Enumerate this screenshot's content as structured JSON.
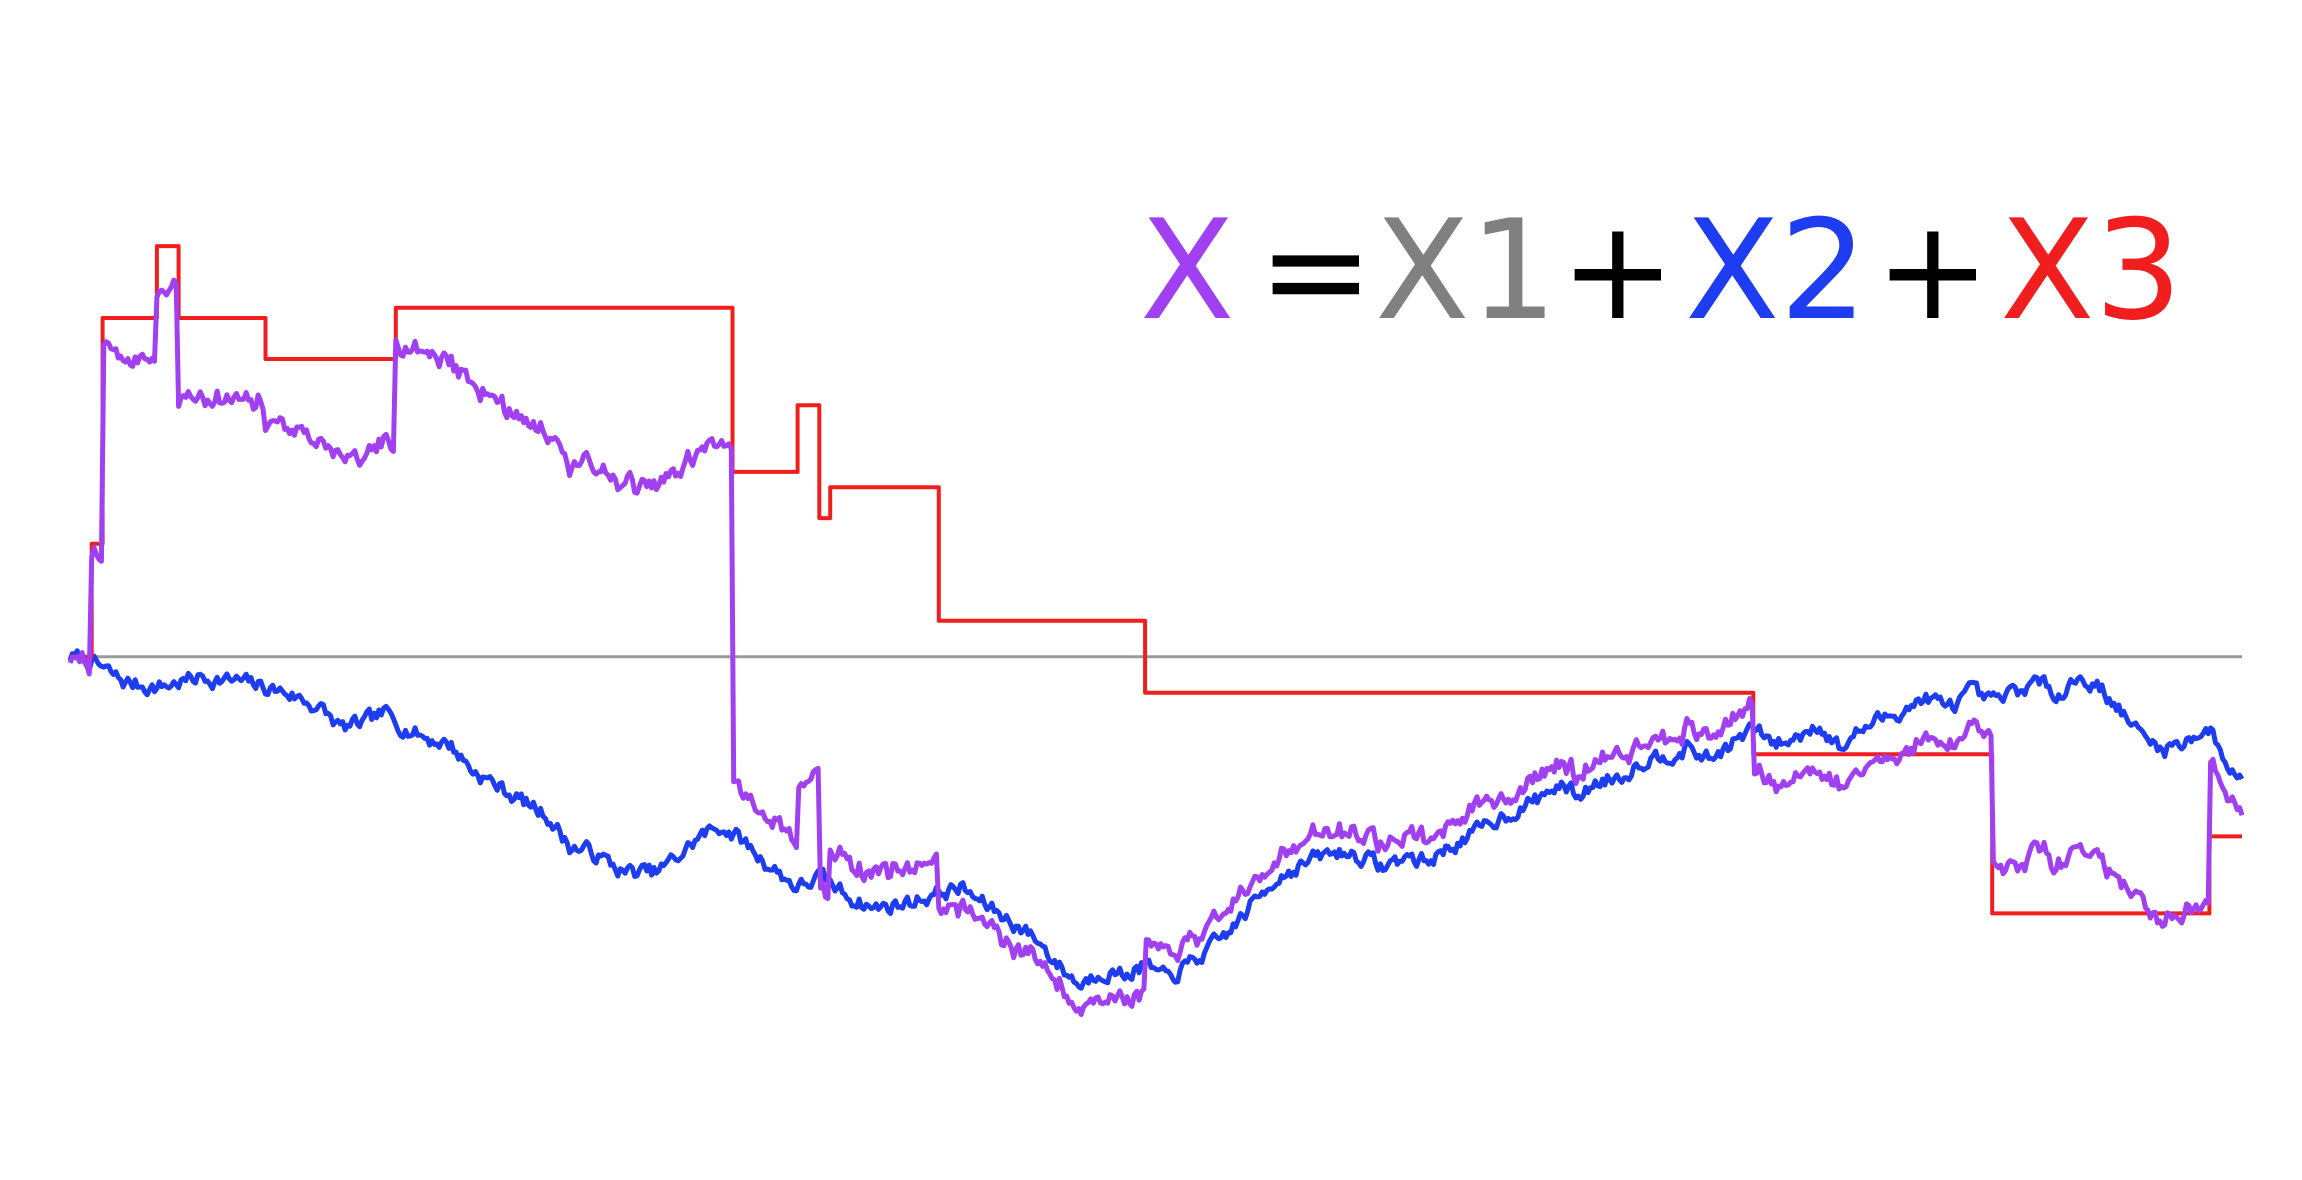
{
  "chart_data": {
    "type": "line",
    "title": "",
    "xlabel": "",
    "ylabel": "",
    "xlim": [
      0,
      1
    ],
    "ylim": [
      -1.0,
      1.26
    ],
    "grid": false,
    "axes_visible": false,
    "zero_line": {
      "y": 0,
      "color": "#999999"
    },
    "formula": [
      {
        "text": "X",
        "color": "#A040F0"
      },
      {
        "text": "=",
        "color": "#000000"
      },
      {
        "text": "X1",
        "color": "#808080"
      },
      {
        "text": "+",
        "color": "#000000"
      },
      {
        "text": "X2",
        "color": "#1E3CF0"
      },
      {
        "text": "+",
        "color": "#000000"
      },
      {
        "text": "X3",
        "color": "#F01E1E"
      }
    ],
    "series": [
      {
        "name": "X2",
        "color": "#1E3CF0",
        "kind": "noisy",
        "seed": 7,
        "noise": 0.012,
        "points": [
          [
            0,
            0
          ],
          [
            0.01,
            -0.01
          ],
          [
            0.025,
            -0.05
          ],
          [
            0.04,
            -0.06
          ],
          [
            0.06,
            -0.04
          ],
          [
            0.08,
            -0.05
          ],
          [
            0.09,
            -0.06
          ],
          [
            0.1,
            -0.07
          ],
          [
            0.115,
            -0.1
          ],
          [
            0.125,
            -0.14
          ],
          [
            0.135,
            -0.13
          ],
          [
            0.145,
            -0.11
          ],
          [
            0.155,
            -0.14
          ],
          [
            0.165,
            -0.16
          ],
          [
            0.175,
            -0.17
          ],
          [
            0.185,
            -0.22
          ],
          [
            0.2,
            -0.26
          ],
          [
            0.22,
            -0.31
          ],
          [
            0.23,
            -0.37
          ],
          [
            0.24,
            -0.38
          ],
          [
            0.255,
            -0.42
          ],
          [
            0.27,
            -0.42
          ],
          [
            0.28,
            -0.39
          ],
          [
            0.29,
            -0.35
          ],
          [
            0.3,
            -0.33
          ],
          [
            0.31,
            -0.36
          ],
          [
            0.32,
            -0.4
          ],
          [
            0.335,
            -0.45
          ],
          [
            0.345,
            -0.43
          ],
          [
            0.36,
            -0.47
          ],
          [
            0.37,
            -0.49
          ],
          [
            0.385,
            -0.48
          ],
          [
            0.4,
            -0.46
          ],
          [
            0.41,
            -0.45
          ],
          [
            0.42,
            -0.48
          ],
          [
            0.435,
            -0.52
          ],
          [
            0.445,
            -0.55
          ],
          [
            0.455,
            -0.6
          ],
          [
            0.465,
            -0.64
          ],
          [
            0.475,
            -0.61
          ],
          [
            0.485,
            -0.62
          ],
          [
            0.495,
            -0.6
          ],
          [
            0.505,
            -0.63
          ],
          [
            0.515,
            -0.6
          ],
          [
            0.525,
            -0.57
          ],
          [
            0.535,
            -0.53
          ],
          [
            0.545,
            -0.48
          ],
          [
            0.555,
            -0.43
          ],
          [
            0.565,
            -0.41
          ],
          [
            0.575,
            -0.39
          ],
          [
            0.585,
            -0.38
          ],
          [
            0.595,
            -0.39
          ],
          [
            0.605,
            -0.41
          ],
          [
            0.615,
            -0.39
          ],
          [
            0.625,
            -0.4
          ],
          [
            0.635,
            -0.37
          ],
          [
            0.645,
            -0.35
          ],
          [
            0.655,
            -0.32
          ],
          [
            0.665,
            -0.3
          ],
          [
            0.675,
            -0.28
          ],
          [
            0.685,
            -0.25
          ],
          [
            0.695,
            -0.27
          ],
          [
            0.705,
            -0.24
          ],
          [
            0.715,
            -0.23
          ],
          [
            0.725,
            -0.2
          ],
          [
            0.735,
            -0.19
          ],
          [
            0.745,
            -0.18
          ],
          [
            0.755,
            -0.2
          ],
          [
            0.765,
            -0.17
          ],
          [
            0.775,
            -0.14
          ],
          [
            0.785,
            -0.17
          ],
          [
            0.795,
            -0.16
          ],
          [
            0.8,
            -0.14
          ],
          [
            0.805,
            -0.13
          ],
          [
            0.815,
            -0.18
          ],
          [
            0.825,
            -0.14
          ],
          [
            0.835,
            -0.12
          ],
          [
            0.845,
            -0.1
          ],
          [
            0.855,
            -0.08
          ],
          [
            0.865,
            -0.1
          ],
          [
            0.875,
            -0.07
          ],
          [
            0.885,
            -0.09
          ],
          [
            0.895,
            -0.07
          ],
          [
            0.905,
            -0.05
          ],
          [
            0.915,
            -0.07
          ],
          [
            0.925,
            -0.04
          ],
          [
            0.935,
            -0.06
          ],
          [
            0.945,
            -0.11
          ],
          [
            0.955,
            -0.16
          ],
          [
            0.965,
            -0.18
          ],
          [
            0.975,
            -0.16
          ],
          [
            0.985,
            -0.14
          ],
          [
            0.99,
            -0.19
          ],
          [
            1,
            -0.24
          ]
        ]
      },
      {
        "name": "X3",
        "color": "#F01E1E",
        "kind": "step",
        "steps": [
          [
            0,
            0
          ],
          [
            0.01,
            0.22
          ],
          [
            0.015,
            0.66
          ],
          [
            0.04,
            0.8
          ],
          [
            0.05,
            0.66
          ],
          [
            0.09,
            0.58
          ],
          [
            0.15,
            0.68
          ],
          [
            0.305,
            0.36
          ],
          [
            0.335,
            0.49
          ],
          [
            0.345,
            0.27
          ],
          [
            0.35,
            0.33
          ],
          [
            0.4,
            0.07
          ],
          [
            0.495,
            -0.07
          ],
          [
            0.775,
            -0.19
          ],
          [
            0.885,
            -0.5
          ],
          [
            0.985,
            -0.35
          ]
        ]
      },
      {
        "name": "X",
        "color": "#A040F0",
        "kind": "sum_with_jumps",
        "seed": 11,
        "noise": 0.01,
        "offsets": [
          [
            0,
            0
          ],
          [
            0.01,
            0.21
          ],
          [
            0.015,
            0.63
          ],
          [
            0.03,
            0.64
          ],
          [
            0.04,
            0.77
          ],
          [
            0.05,
            0.55
          ],
          [
            0.09,
            0.52
          ],
          [
            0.15,
            0.75
          ],
          [
            0.305,
            0.09
          ],
          [
            0.335,
            0.2
          ],
          [
            0.345,
            -0.03
          ],
          [
            0.35,
            0.07
          ],
          [
            0.4,
            -0.04
          ],
          [
            0.495,
            0.04
          ],
          [
            0.775,
            -0.08
          ],
          [
            0.885,
            -0.33
          ],
          [
            0.985,
            -0.06
          ]
        ]
      }
    ]
  }
}
